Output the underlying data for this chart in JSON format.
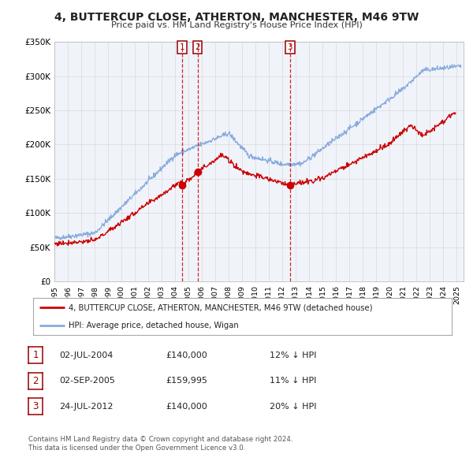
{
  "title": "4, BUTTERCUP CLOSE, ATHERTON, MANCHESTER, M46 9TW",
  "subtitle": "Price paid vs. HM Land Registry's House Price Index (HPI)",
  "legend_label_red": "4, BUTTERCUP CLOSE, ATHERTON, MANCHESTER, M46 9TW (detached house)",
  "legend_label_blue": "HPI: Average price, detached house, Wigan",
  "footer1": "Contains HM Land Registry data © Crown copyright and database right 2024.",
  "footer2": "This data is licensed under the Open Government Licence v3.0.",
  "transactions": [
    {
      "num": "1",
      "date": "02-JUL-2004",
      "date_x": 2004.5,
      "price": 140000,
      "price_str": "£140,000",
      "hpi_pct": "12% ↓ HPI"
    },
    {
      "num": "2",
      "date": "02-SEP-2005",
      "date_x": 2005.67,
      "price": 159995,
      "price_str": "£159,995",
      "hpi_pct": "11% ↓ HPI"
    },
    {
      "num": "3",
      "date": "24-JUL-2012",
      "date_x": 2012.56,
      "price": 140000,
      "price_str": "£140,000",
      "hpi_pct": "20% ↓ HPI"
    }
  ],
  "ylim": [
    0,
    350000
  ],
  "xlim": [
    1995,
    2025.5
  ],
  "yticks": [
    0,
    50000,
    100000,
    150000,
    200000,
    250000,
    300000,
    350000
  ],
  "ytick_labels": [
    "£0",
    "£50K",
    "£100K",
    "£150K",
    "£200K",
    "£250K",
    "£300K",
    "£350K"
  ],
  "red_color": "#cc0000",
  "blue_color": "#88aadd",
  "grid_color": "#d8d8d8",
  "bg_color": "#f0f4fa"
}
